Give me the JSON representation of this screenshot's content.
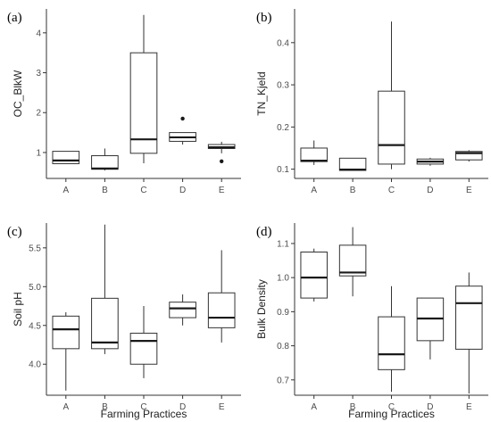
{
  "chart_data": [
    {
      "type": "box",
      "panel_label": "(a)",
      "xlabel": "",
      "ylabel": "OC_BlkW",
      "ylim": [
        0.35,
        4.6
      ],
      "yticks": [
        1,
        2,
        3,
        4
      ],
      "ytick_labels": [
        "1",
        "2",
        "3",
        "4"
      ],
      "categories": [
        "A",
        "B",
        "C",
        "D",
        "E"
      ],
      "boxes": [
        {
          "whisker_low": 0.72,
          "q1": 0.72,
          "median": 0.8,
          "q3": 1.03,
          "whisker_high": 1.03,
          "outliers": []
        },
        {
          "whisker_low": 0.55,
          "q1": 0.58,
          "median": 0.6,
          "q3": 0.92,
          "whisker_high": 1.1,
          "outliers": []
        },
        {
          "whisker_low": 0.73,
          "q1": 0.98,
          "median": 1.33,
          "q3": 3.5,
          "whisker_high": 4.45,
          "outliers": []
        },
        {
          "whisker_low": 1.2,
          "q1": 1.28,
          "median": 1.38,
          "q3": 1.5,
          "whisker_high": 1.5,
          "outliers": [
            1.85
          ]
        },
        {
          "whisker_low": 0.98,
          "q1": 1.1,
          "median": 1.13,
          "q3": 1.2,
          "whisker_high": 1.27,
          "outliers": [
            0.78
          ]
        }
      ]
    },
    {
      "type": "box",
      "panel_label": "(b)",
      "xlabel": "",
      "ylabel": "TN_Kjeld",
      "ylim": [
        0.078,
        0.48
      ],
      "yticks": [
        0.1,
        0.2,
        0.3,
        0.4
      ],
      "ytick_labels": [
        "0.1",
        "0.2",
        "0.3",
        "0.4"
      ],
      "categories": [
        "A",
        "B",
        "C",
        "D",
        "E"
      ],
      "boxes": [
        {
          "whisker_low": 0.11,
          "q1": 0.118,
          "median": 0.12,
          "q3": 0.15,
          "whisker_high": 0.168,
          "outliers": []
        },
        {
          "whisker_low": 0.097,
          "q1": 0.097,
          "median": 0.099,
          "q3": 0.126,
          "whisker_high": 0.126,
          "outliers": []
        },
        {
          "whisker_low": 0.1,
          "q1": 0.112,
          "median": 0.157,
          "q3": 0.285,
          "whisker_high": 0.45,
          "outliers": []
        },
        {
          "whisker_low": 0.108,
          "q1": 0.112,
          "median": 0.118,
          "q3": 0.124,
          "whisker_high": 0.127,
          "outliers": []
        },
        {
          "whisker_low": 0.118,
          "q1": 0.122,
          "median": 0.138,
          "q3": 0.142,
          "whisker_high": 0.145,
          "outliers": []
        }
      ]
    },
    {
      "type": "box",
      "panel_label": "(c)",
      "xlabel": "Farming Practices",
      "ylabel": "Soil pH",
      "ylim": [
        3.6,
        5.82
      ],
      "yticks": [
        4.0,
        4.5,
        5.0,
        5.5
      ],
      "ytick_labels": [
        "4.0",
        "4.5",
        "5.0",
        "5.5"
      ],
      "categories": [
        "A",
        "B",
        "C",
        "D",
        "E"
      ],
      "boxes": [
        {
          "whisker_low": 3.66,
          "q1": 4.2,
          "median": 4.45,
          "q3": 4.62,
          "whisker_high": 4.67,
          "outliers": []
        },
        {
          "whisker_low": 4.13,
          "q1": 4.2,
          "median": 4.28,
          "q3": 4.85,
          "whisker_high": 5.8,
          "outliers": []
        },
        {
          "whisker_low": 3.82,
          "q1": 4.0,
          "median": 4.3,
          "q3": 4.4,
          "whisker_high": 4.75,
          "outliers": []
        },
        {
          "whisker_low": 4.5,
          "q1": 4.6,
          "median": 4.72,
          "q3": 4.8,
          "whisker_high": 4.9,
          "outliers": []
        },
        {
          "whisker_low": 4.28,
          "q1": 4.47,
          "median": 4.6,
          "q3": 4.92,
          "whisker_high": 5.47,
          "outliers": []
        }
      ]
    },
    {
      "type": "box",
      "panel_label": "(d)",
      "xlabel": "Farming Practices",
      "ylabel": "Bulk Density",
      "ylim": [
        0.655,
        1.16
      ],
      "yticks": [
        0.7,
        0.8,
        0.9,
        1.0,
        1.1
      ],
      "ytick_labels": [
        "0.7",
        "0.8",
        "0.9",
        "1.0",
        "1.1"
      ],
      "categories": [
        "A",
        "B",
        "C",
        "D",
        "E"
      ],
      "boxes": [
        {
          "whisker_low": 0.93,
          "q1": 0.94,
          "median": 1.0,
          "q3": 1.075,
          "whisker_high": 1.085,
          "outliers": []
        },
        {
          "whisker_low": 0.945,
          "q1": 1.005,
          "median": 1.015,
          "q3": 1.095,
          "whisker_high": 1.148,
          "outliers": []
        },
        {
          "whisker_low": 0.665,
          "q1": 0.73,
          "median": 0.775,
          "q3": 0.885,
          "whisker_high": 0.975,
          "outliers": []
        },
        {
          "whisker_low": 0.76,
          "q1": 0.815,
          "median": 0.88,
          "q3": 0.94,
          "whisker_high": 0.94,
          "outliers": []
        },
        {
          "whisker_low": 0.66,
          "q1": 0.79,
          "median": 0.925,
          "q3": 0.975,
          "whisker_high": 1.015,
          "outliers": []
        }
      ]
    }
  ]
}
